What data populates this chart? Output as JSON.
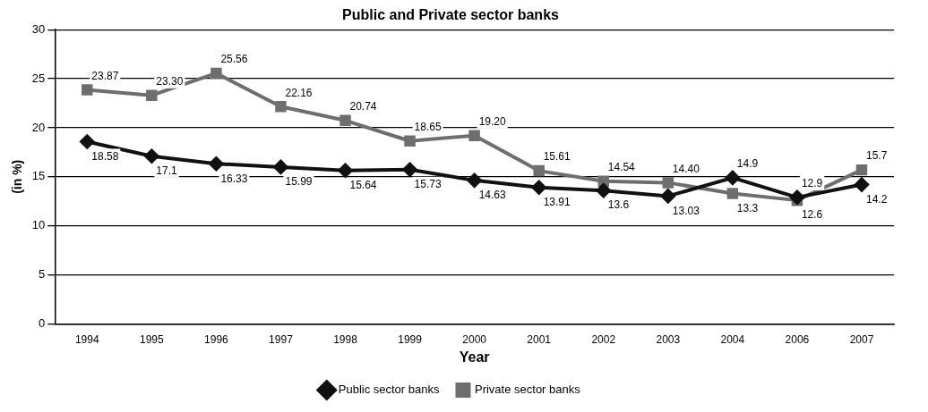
{
  "chart_data": {
    "type": "line",
    "title": "Public and Private sector banks",
    "xlabel": "Year",
    "ylabel": "(in %)",
    "categories": [
      "1994",
      "1995",
      "1996",
      "1997",
      "1998",
      "1999",
      "2000",
      "2001",
      "2002",
      "2003",
      "2004",
      "2006",
      "2007"
    ],
    "ylim": [
      0,
      30
    ],
    "yticks": [
      0,
      5,
      10,
      15,
      20,
      25,
      30
    ],
    "grid": "y",
    "legend": "bottom",
    "data_labels": true,
    "series": [
      {
        "name": "Public sector banks",
        "color": "#111111",
        "marker": "diamond",
        "values": [
          18.58,
          17.1,
          16.33,
          15.99,
          15.64,
          15.73,
          14.63,
          13.91,
          13.6,
          13.03,
          14.9,
          12.9,
          14.2
        ],
        "value_labels": [
          "18.58",
          "17.1",
          "16.33",
          "15.99",
          "15.64",
          "15.73",
          "14.63",
          "13.91",
          "13.6",
          "13.03",
          "14.9",
          "12.9",
          "14.2"
        ]
      },
      {
        "name": "Private sector banks",
        "color": "#6e6e6e",
        "marker": "square",
        "values": [
          23.87,
          23.3,
          25.56,
          22.16,
          20.74,
          18.65,
          19.2,
          15.61,
          14.54,
          14.4,
          13.3,
          12.6,
          15.7
        ],
        "value_labels": [
          "23.87",
          "23.30",
          "25.56",
          "22.16",
          "20.74",
          "18.65",
          "19.20",
          "15.61",
          "14.54",
          "14.40",
          "13.3",
          "12.6",
          "15.7"
        ]
      }
    ]
  }
}
